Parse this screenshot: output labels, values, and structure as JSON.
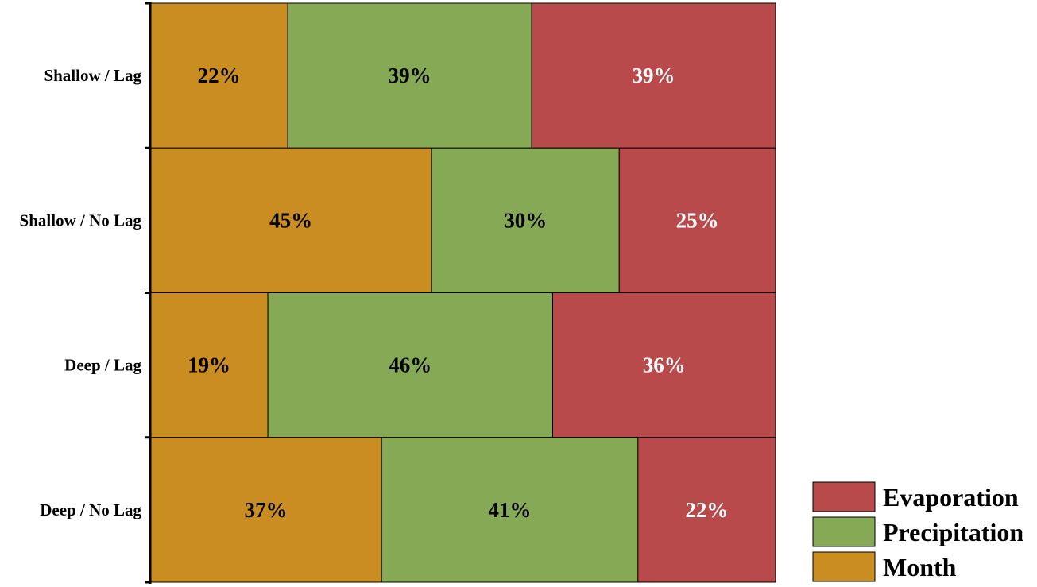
{
  "chart_data": {
    "type": "bar",
    "orientation": "horizontal",
    "stacked": "100%",
    "categories": [
      "Shallow / Lag",
      "Shallow / No Lag",
      "Deep / Lag",
      "Deep / No Lag"
    ],
    "series": [
      {
        "name": "Month",
        "color": "#C98D22",
        "label_color": "#000000",
        "values": [
          22,
          45,
          19,
          37
        ]
      },
      {
        "name": "Precipitation",
        "color": "#86A955",
        "label_color": "#000000",
        "values": [
          39,
          30,
          46,
          41
        ]
      },
      {
        "name": "Evaporation",
        "color": "#B94A4C",
        "label_color": "#FFFFFF",
        "values": [
          39,
          25,
          36,
          22
        ]
      }
    ],
    "value_suffix": "%",
    "legend": {
      "placement": "bottom-right",
      "order": [
        "Evaporation",
        "Precipitation",
        "Month"
      ]
    },
    "title": "",
    "xlabel": "",
    "ylabel": ""
  }
}
